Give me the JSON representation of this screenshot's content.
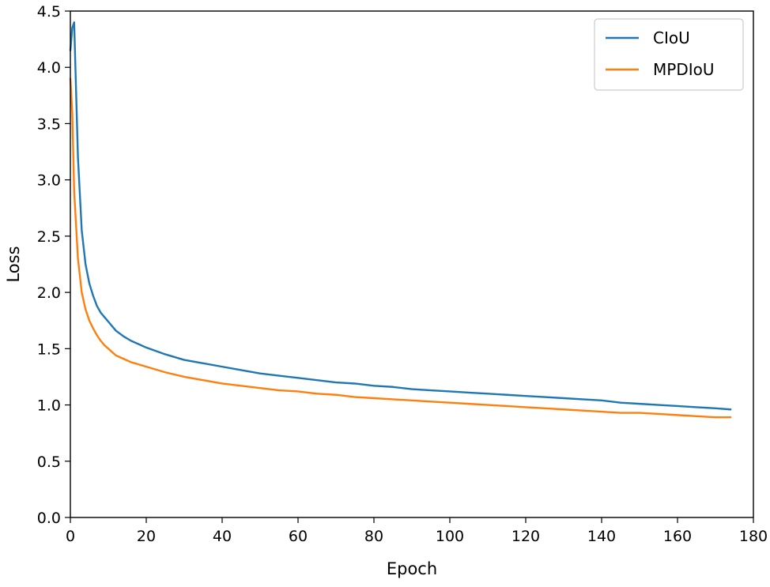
{
  "chart_data": {
    "type": "line",
    "title": "",
    "xlabel": "Epoch",
    "ylabel": "Loss",
    "xlim": [
      0,
      180
    ],
    "ylim": [
      0.0,
      4.5
    ],
    "x_ticks": [
      0,
      20,
      40,
      60,
      80,
      100,
      120,
      140,
      160,
      180
    ],
    "y_ticks": [
      "0.0",
      "0.5",
      "1.0",
      "1.5",
      "2.0",
      "2.5",
      "3.0",
      "3.5",
      "4.0",
      "4.5"
    ],
    "grid": false,
    "legend_position": "top-right",
    "series": [
      {
        "name": "CIoU",
        "color": "#1f77b4",
        "x": [
          0,
          0.5,
          1,
          2,
          3,
          4,
          5,
          6,
          7,
          8,
          9,
          10,
          12,
          14,
          16,
          18,
          20,
          25,
          30,
          35,
          40,
          45,
          50,
          55,
          60,
          65,
          70,
          75,
          80,
          85,
          90,
          95,
          100,
          105,
          110,
          115,
          120,
          125,
          130,
          135,
          140,
          145,
          150,
          155,
          160,
          165,
          170,
          174
        ],
        "y": [
          4.15,
          4.35,
          4.4,
          3.2,
          2.55,
          2.25,
          2.08,
          1.97,
          1.88,
          1.82,
          1.78,
          1.74,
          1.66,
          1.61,
          1.57,
          1.54,
          1.51,
          1.45,
          1.4,
          1.37,
          1.34,
          1.31,
          1.28,
          1.26,
          1.24,
          1.22,
          1.2,
          1.19,
          1.17,
          1.16,
          1.14,
          1.13,
          1.12,
          1.11,
          1.1,
          1.09,
          1.08,
          1.07,
          1.06,
          1.05,
          1.04,
          1.02,
          1.01,
          1.0,
          0.99,
          0.98,
          0.97,
          0.96
        ]
      },
      {
        "name": "MPDIoU",
        "color": "#ff7f0e",
        "x": [
          0,
          0.5,
          1,
          2,
          3,
          4,
          5,
          6,
          7,
          8,
          9,
          10,
          12,
          14,
          16,
          18,
          20,
          25,
          30,
          35,
          40,
          45,
          50,
          55,
          60,
          65,
          70,
          75,
          80,
          85,
          90,
          95,
          100,
          105,
          110,
          115,
          120,
          125,
          130,
          135,
          140,
          145,
          150,
          155,
          160,
          165,
          170,
          174
        ],
        "y": [
          3.9,
          3.6,
          2.9,
          2.3,
          2.0,
          1.85,
          1.75,
          1.68,
          1.62,
          1.57,
          1.53,
          1.5,
          1.44,
          1.41,
          1.38,
          1.36,
          1.34,
          1.29,
          1.25,
          1.22,
          1.19,
          1.17,
          1.15,
          1.13,
          1.12,
          1.1,
          1.09,
          1.07,
          1.06,
          1.05,
          1.04,
          1.03,
          1.02,
          1.01,
          1.0,
          0.99,
          0.98,
          0.97,
          0.96,
          0.95,
          0.94,
          0.93,
          0.93,
          0.92,
          0.91,
          0.9,
          0.89,
          0.89
        ]
      }
    ]
  }
}
